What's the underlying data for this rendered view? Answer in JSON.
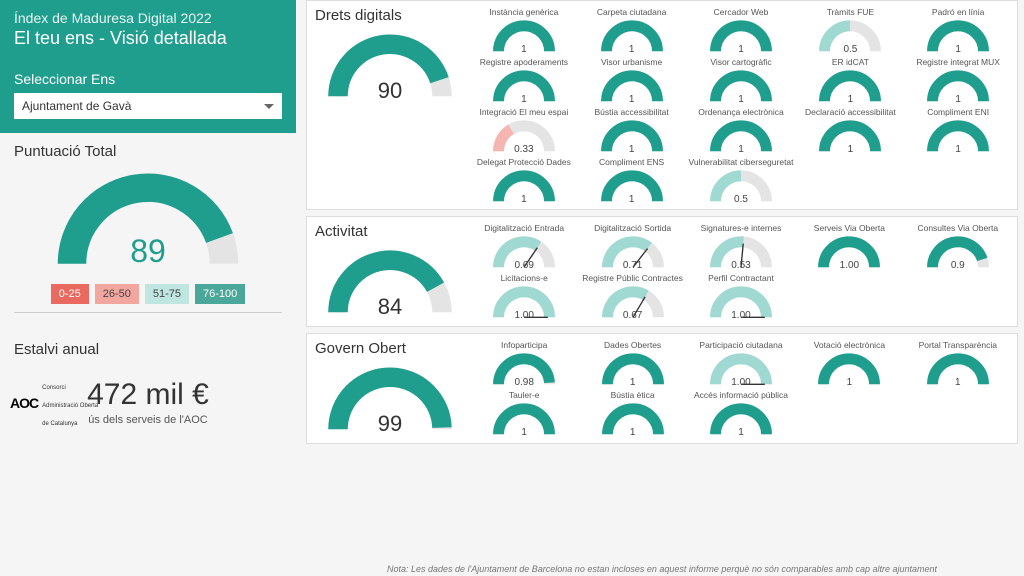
{
  "colors": {
    "teal": "#1f9e8e",
    "teal_light": "#9fd9d1",
    "grey_track": "#e4e4e4",
    "pink": "#f5b5b0",
    "legend": [
      "#ea6a60",
      "#f2a6a0",
      "#bfe6e0",
      "#4aa79a"
    ]
  },
  "header": {
    "sup": "Índex de Maduresa Digital 2022",
    "main": "El teu ens - Visió detallada"
  },
  "selector": {
    "label": "Seleccionar Ens",
    "value": "Ajuntament de Gavà"
  },
  "total": {
    "title": "Puntuació Total",
    "value": 89,
    "legend": [
      "0-25",
      "26-50",
      "51-75",
      "76-100"
    ]
  },
  "savings": {
    "title": "Estalvi anual",
    "value": "472 mil €",
    "sub": "ús dels serveis de l'AOC"
  },
  "logo": {
    "brand": "AOC",
    "sub1": "Consorci",
    "sub2": "Administració Oberta",
    "sub3": "de Catalunya"
  },
  "sections": [
    {
      "title": "Drets digitals",
      "score": 90,
      "items": [
        {
          "label": "Instància genèrica",
          "v": 1,
          "style": "full"
        },
        {
          "label": "Carpeta ciutadana",
          "v": 1,
          "style": "full"
        },
        {
          "label": "Cercador Web",
          "v": 1,
          "style": "full"
        },
        {
          "label": "Tràmits FUE",
          "v": 0.5,
          "style": "half-light"
        },
        {
          "label": "Padró en línia",
          "v": 1,
          "style": "full"
        },
        {
          "label": "Registre apoderaments",
          "v": 1,
          "style": "full"
        },
        {
          "label": "Visor urbanisme",
          "v": 1,
          "style": "full"
        },
        {
          "label": "Visor cartogràfic",
          "v": 1,
          "style": "full"
        },
        {
          "label": "ER idCAT",
          "v": 1,
          "style": "full"
        },
        {
          "label": "Registre integrat MUX",
          "v": 1,
          "style": "full"
        },
        {
          "label": "Integració El meu espai",
          "v": 0.33,
          "style": "low-pink"
        },
        {
          "label": "Bústia accessibilitat",
          "v": 1,
          "style": "full"
        },
        {
          "label": "Ordenança electrònica",
          "v": 1,
          "style": "full"
        },
        {
          "label": "Declaració accessibilitat",
          "v": 1,
          "style": "full"
        },
        {
          "label": "Compliment ENI",
          "v": 1,
          "style": "full"
        },
        {
          "label": "Delegat Protecció Dades",
          "v": 1,
          "style": "full"
        },
        {
          "label": "Compliment ENS",
          "v": 1,
          "style": "full"
        },
        {
          "label": "Vulnerabilitat ciberseguretat",
          "v": 0.5,
          "style": "half-light"
        }
      ]
    },
    {
      "title": "Activitat",
      "score": 84,
      "items": [
        {
          "label": "Digitalització Entrada",
          "v": 0.69,
          "style": "needle"
        },
        {
          "label": "Digitalització Sortida",
          "v": 0.71,
          "style": "needle"
        },
        {
          "label": "Signatures-e internes",
          "v": 0.53,
          "style": "needle"
        },
        {
          "label": "Serveis Via Oberta",
          "v": 1.0,
          "style": "full",
          "fmt": "1.00"
        },
        {
          "label": "Consultes Via Oberta",
          "v": 0.9,
          "style": "partial"
        },
        {
          "label": "Licitacions-e",
          "v": 1.0,
          "style": "needle-full",
          "fmt": "1.00"
        },
        {
          "label": "Registre Públic Contractes",
          "v": 0.67,
          "style": "needle"
        },
        {
          "label": "Perfil Contractant",
          "v": 1.0,
          "style": "needle-full",
          "fmt": "1.00"
        }
      ]
    },
    {
      "title": "Govern Obert",
      "score": 99,
      "items": [
        {
          "label": "Infoparticipa",
          "v": 0.98,
          "style": "partial"
        },
        {
          "label": "Dades Obertes",
          "v": 1,
          "style": "full"
        },
        {
          "label": "Participació ciutadana",
          "v": 1.0,
          "style": "needle-full",
          "fmt": "1.00"
        },
        {
          "label": "Votació electrònica",
          "v": 1,
          "style": "full"
        },
        {
          "label": "Portal Transparència",
          "v": 1,
          "style": "full"
        },
        {
          "label": "Tauler-e",
          "v": 1,
          "style": "full"
        },
        {
          "label": "Bústia ètica",
          "v": 1,
          "style": "full"
        },
        {
          "label": "Accés informació pública",
          "v": 1,
          "style": "full"
        }
      ]
    }
  ],
  "footnote": "Nota: Les dades de l'Ajuntament de Barcelona no estan incloses en aquest informe perquè no són comparables amb cap altre ajuntament"
}
